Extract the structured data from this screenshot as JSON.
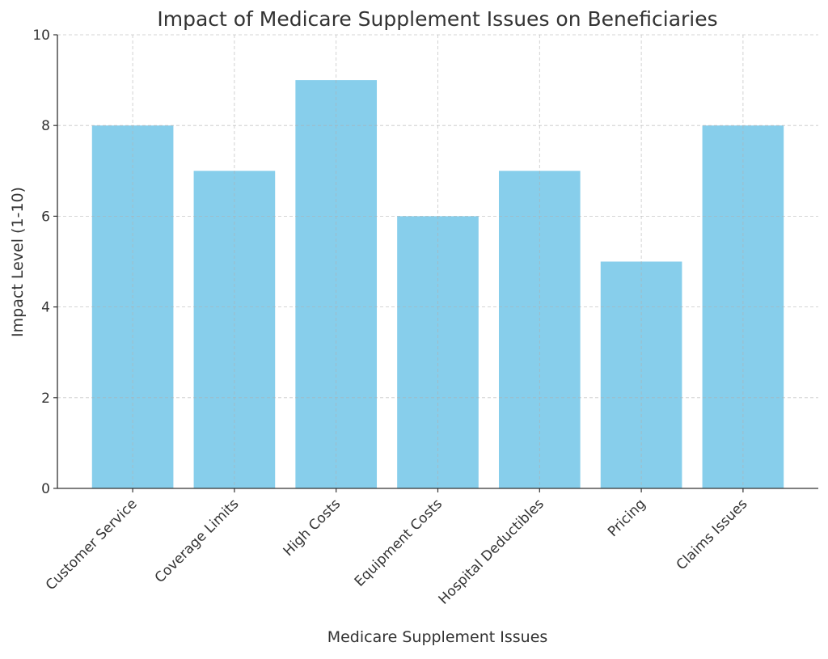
{
  "chart_data": {
    "type": "bar",
    "title": "Impact of Medicare Supplement Issues on Beneficiaries",
    "xlabel": "Medicare Supplement Issues",
    "ylabel": "Impact Level (1-10)",
    "categories": [
      "Customer Service",
      "Coverage Limits",
      "High Costs",
      "Equipment Costs",
      "Hospital Deductibles",
      "Pricing",
      "Claims Issues"
    ],
    "values": [
      8,
      7,
      9,
      6,
      7,
      5,
      8
    ],
    "ylim": [
      0,
      10
    ],
    "yticks": [
      0,
      2,
      4,
      6,
      8,
      10
    ],
    "grid": true,
    "bar_color": "#87CEEB"
  }
}
